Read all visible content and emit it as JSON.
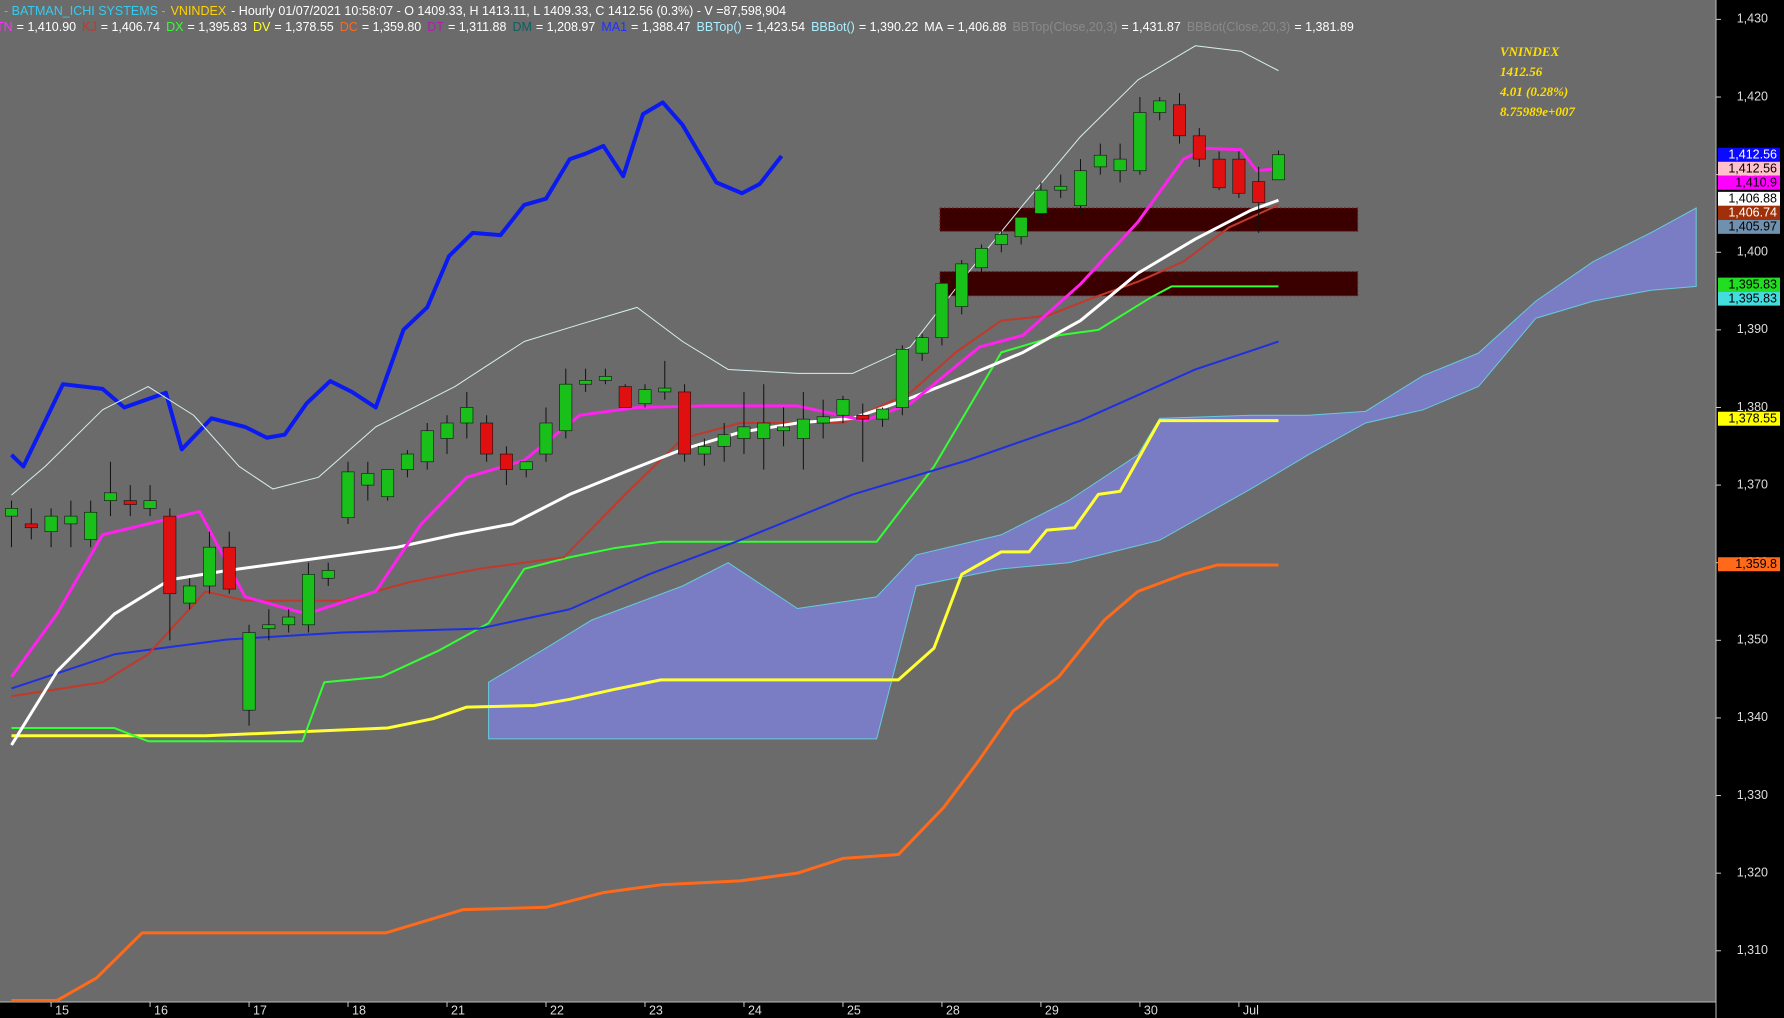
{
  "chart_data": {
    "type": "candlestick",
    "title_parts": [
      {
        "text": "- BATMAN_ICHI SYSTEMS -",
        "color": "#33ccee"
      },
      {
        "text": "VNINDEX",
        "color": "#ffd200"
      },
      {
        "text": "- Hourly 01/07/2021 10:58:07 - O 1409.33, H 1413.11, L 1409.33, C 1412.56 (0.3%) - V =87,598,904",
        "color": "#ffffff"
      }
    ],
    "indicator_legend": [
      {
        "name": "TN",
        "text": "= 1,410.90",
        "color": "#ff33ff"
      },
      {
        "name": "KJ",
        "text": "= 1,406.74",
        "color": "#c0392b"
      },
      {
        "name": "DX",
        "text": "= 1,395.83",
        "color": "#33ff33"
      },
      {
        "name": "DV",
        "text": "= 1,378.55",
        "color": "#ffff33"
      },
      {
        "name": "DC",
        "text": "= 1,359.80",
        "color": "#ff6a1a"
      },
      {
        "name": "DT",
        "text": "= 1,311.88",
        "color": "#aa22aa"
      },
      {
        "name": "DM",
        "text": "= 1,208.97",
        "color": "#0f5f5f"
      },
      {
        "name": "MA1",
        "text": "= 1,388.47",
        "color": "#2030ff"
      },
      {
        "name": "BBTop()",
        "text": "= 1,423.54",
        "color": "#aaeeff"
      },
      {
        "name": "BBBot()",
        "text": "= 1,390.22",
        "color": "#aaeeff"
      },
      {
        "name": "MA",
        "text": "= 1,406.88",
        "color": "#ffffff"
      },
      {
        "name": "BBTop(Close,20,3)",
        "text": "= 1,431.87",
        "color": "#8a8a8a"
      },
      {
        "name": "BBBot(Close,20,3)",
        "text": "= 1,381.89",
        "color": "#8a8a8a"
      }
    ],
    "annotation": {
      "lines": [
        "VNINDEX",
        "1412.56",
        "4.01 (0.28%)",
        "8.75989e+007"
      ],
      "color": "#ffe000"
    },
    "xlim": [
      -0.58,
      86.1
    ],
    "ylim": [
      1303.4,
      1432.5
    ],
    "xticks": [
      {
        "value": 2,
        "label": "15"
      },
      {
        "value": 7,
        "label": "16"
      },
      {
        "value": 12,
        "label": "17"
      },
      {
        "value": 17,
        "label": "18"
      },
      {
        "value": 22,
        "label": "21"
      },
      {
        "value": 27,
        "label": "22"
      },
      {
        "value": 32,
        "label": "23"
      },
      {
        "value": 37,
        "label": "24"
      },
      {
        "value": 42,
        "label": "25"
      },
      {
        "value": 47,
        "label": "28"
      },
      {
        "value": 52,
        "label": "29"
      },
      {
        "value": 57,
        "label": "30"
      },
      {
        "value": 62,
        "label": "Jul"
      }
    ],
    "yticks": [
      {
        "value": 1310,
        "label": "1,310"
      },
      {
        "value": 1320,
        "label": "1,320"
      },
      {
        "value": 1330,
        "label": "1,330"
      },
      {
        "value": 1340,
        "label": "1,340"
      },
      {
        "value": 1350,
        "label": "1,350"
      },
      {
        "value": 1360,
        "label": "1,360"
      },
      {
        "value": 1370,
        "label": "1,370"
      },
      {
        "value": 1380,
        "label": "1,380"
      },
      {
        "value": 1390,
        "label": "1,390"
      },
      {
        "value": 1400,
        "label": "1,400"
      },
      {
        "value": 1410,
        "label": "1,410"
      },
      {
        "value": 1420,
        "label": "1,420"
      },
      {
        "value": 1430,
        "label": "1,430"
      }
    ],
    "up_color": "#19c019",
    "down_color": "#e01010",
    "candles": {
      "open": [
        1366,
        1365,
        1364,
        1365,
        1363,
        1368,
        1368,
        1367,
        1366,
        1354.8,
        1357,
        1362,
        1341,
        1351.5,
        1352,
        1352,
        1358,
        1365.8,
        1370,
        1368.5,
        1372,
        1373,
        1376,
        1378,
        1378,
        1374,
        1372,
        1374,
        1377,
        1383,
        1383.5,
        1382.7,
        1380.5,
        1382,
        1382,
        1374,
        1375,
        1376,
        1376,
        1377,
        1376,
        1378,
        1379,
        1379,
        1378.5,
        1380,
        1387,
        1389,
        1393,
        1398,
        1401,
        1402,
        1405,
        1408,
        1406,
        1411,
        1410.5,
        1410.5,
        1418,
        1419,
        1415,
        1412,
        1412,
        1409.1,
        1409.33
      ],
      "high": [
        1368,
        1367,
        1367,
        1368,
        1368,
        1373,
        1370,
        1370,
        1367,
        1358,
        1364,
        1364,
        1352,
        1354,
        1354,
        1360,
        1360,
        1373,
        1373,
        1372,
        1374.5,
        1378,
        1379,
        1382,
        1379,
        1375,
        1373,
        1380,
        1385,
        1385,
        1385,
        1383,
        1383,
        1386,
        1383,
        1376,
        1378,
        1382,
        1383,
        1380,
        1382,
        1381,
        1381.5,
        1380.5,
        1380,
        1388,
        1389.5,
        1397,
        1399,
        1401,
        1403,
        1405,
        1409,
        1410,
        1412,
        1414,
        1414,
        1420,
        1420,
        1420.5,
        1416,
        1413,
        1413,
        1411,
        1413.11
      ],
      "low": [
        1362,
        1363,
        1362,
        1362,
        1362,
        1366,
        1366,
        1366,
        1350,
        1354,
        1356,
        1356,
        1339,
        1350,
        1351,
        1351,
        1357,
        1365,
        1368,
        1368,
        1371,
        1372,
        1374,
        1376,
        1373,
        1370,
        1371,
        1373,
        1376,
        1382,
        1383,
        1380,
        1380,
        1381,
        1373,
        1372.5,
        1373,
        1374,
        1372,
        1375,
        1372,
        1376,
        1378,
        1373,
        1377.5,
        1379,
        1386,
        1388,
        1392,
        1397,
        1400,
        1401,
        1404,
        1407,
        1405,
        1410,
        1409,
        1410,
        1417,
        1414,
        1411,
        1408,
        1407,
        1402.5,
        1409.33
      ],
      "close": [
        1367,
        1364.5,
        1366,
        1366,
        1366.5,
        1369,
        1367.5,
        1368,
        1356,
        1357,
        1362,
        1356.6,
        1351,
        1352,
        1353,
        1358.5,
        1359,
        1371.7,
        1371.5,
        1372,
        1374,
        1377,
        1378,
        1380,
        1374,
        1372,
        1373,
        1378,
        1383,
        1383.5,
        1384,
        1380,
        1382.3,
        1382.5,
        1374,
        1375,
        1376.5,
        1377.5,
        1378,
        1377.5,
        1378.5,
        1378.8,
        1381,
        1378.5,
        1379.8,
        1387.5,
        1389,
        1396,
        1398.5,
        1400.5,
        1402.3,
        1404.5,
        1408,
        1408.5,
        1410.5,
        1412.5,
        1412,
        1418,
        1419.5,
        1415,
        1412,
        1408.3,
        1407.6,
        1406.4,
        1412.56
      ]
    },
    "cloud": {
      "color": "#7a7cc4",
      "x": [
        24.1,
        27,
        29.3,
        31.6,
        33.9,
        36.2,
        39.7,
        43.7,
        45.7,
        50,
        53.4,
        56.9,
        58,
        62.6,
        65.5,
        68.4,
        71.3,
        74.1,
        77,
        79.9,
        82.8,
        85.1
      ],
      "upper": [
        1344.6,
        1349,
        1352.6,
        1354.8,
        1357,
        1360,
        1354.1,
        1355.6,
        1361,
        1363.6,
        1368,
        1373.9,
        1378.6,
        1379,
        1379,
        1379.5,
        1384.1,
        1387,
        1393.7,
        1398.8,
        1402.5,
        1405.7
      ],
      "lower": [
        1337.3,
        1337.3,
        1337.3,
        1337.3,
        1337.3,
        1337.3,
        1337.3,
        1337.3,
        1357,
        1359.2,
        1360,
        1362.2,
        1362.9,
        1369.5,
        1373.9,
        1378,
        1379.7,
        1382.7,
        1391.5,
        1393.7,
        1395.1,
        1395.6
      ]
    },
    "zones": [
      {
        "color": "#3a0000",
        "x": [
          46.9,
          68
        ],
        "y": [
          1402.7,
          1405.7
        ]
      },
      {
        "color": "#3a0000",
        "x": [
          46.9,
          68
        ],
        "y": [
          1394.4,
          1397.5
        ]
      }
    ],
    "series": [
      {
        "color": "#ff6a1a",
        "width": 3,
        "x": [
          0,
          2.3,
          4.3,
          6.6,
          18.9,
          22.8,
          27,
          29.9,
          32.8,
          36.8,
          39.7,
          42,
          44.8,
          47.1,
          48.8,
          50.6,
          52.9,
          55.2,
          56.9,
          59.2,
          60.9,
          64
        ],
        "values": [
          1303.6,
          1303.6,
          1306.5,
          1312.3,
          1312.3,
          1315.3,
          1315.6,
          1317.5,
          1318.5,
          1319,
          1320,
          1321.9,
          1322.4,
          1328.5,
          1334.3,
          1340.9,
          1345.3,
          1352.6,
          1356.3,
          1358.5,
          1359.7,
          1359.7
        ]
      },
      {
        "color": "#ffff33",
        "width": 3,
        "x": [
          0,
          9.8,
          19,
          21.3,
          23,
          26.4,
          28.2,
          30.5,
          32.8,
          44.8,
          46.6,
          48,
          50,
          51.4,
          52.3,
          53.7,
          54.9,
          56,
          58,
          64
        ],
        "values": [
          1337.7,
          1337.7,
          1338.7,
          1339.9,
          1341.4,
          1341.6,
          1342.4,
          1343.7,
          1344.9,
          1344.9,
          1349,
          1358.5,
          1361.4,
          1361.4,
          1364.2,
          1364.5,
          1368.8,
          1369.2,
          1378.3,
          1378.3
        ]
      },
      {
        "color": "#33ff33",
        "width": 2,
        "x": [
          0,
          5.2,
          6.9,
          14.7,
          15.8,
          18.7,
          21.6,
          24.1,
          25.9,
          28.2,
          30.5,
          32.8,
          43.7,
          46.6,
          50,
          52.9,
          54.9,
          57.5,
          58.6,
          64
        ],
        "values": [
          1338.7,
          1338.7,
          1337,
          1337,
          1344.6,
          1345.3,
          1348.7,
          1352.2,
          1359.2,
          1360.7,
          1361.9,
          1362.7,
          1362.7,
          1372.4,
          1387.1,
          1389.3,
          1390,
          1394.1,
          1395.6,
          1395.6
        ]
      },
      {
        "color": "#1f30e0",
        "width": 2,
        "x": [
          0,
          5.2,
          10.9,
          16.7,
          23.6,
          28.2,
          32.2,
          36.8,
          42.5,
          48.3,
          54,
          59.8,
          64
        ],
        "values": [
          1343.8,
          1348.2,
          1350.1,
          1351,
          1351.5,
          1354,
          1358.5,
          1362.9,
          1368.8,
          1373.2,
          1378.3,
          1384.9,
          1388.5
        ]
      },
      {
        "color": "#c0392b",
        "width": 2,
        "x": [
          0,
          4.6,
          6.9,
          9.8,
          11.8,
          16.7,
          20.1,
          23.6,
          27.9,
          31,
          33.9,
          36.8,
          42,
          45.4,
          47.7,
          50,
          52.3,
          54.6,
          56.9,
          59.2,
          61.5,
          64
        ],
        "values": [
          1342.8,
          1344.6,
          1348.2,
          1356.3,
          1355.1,
          1355.1,
          1357.5,
          1359.2,
          1360.7,
          1368.8,
          1376,
          1378,
          1378,
          1381.9,
          1387.1,
          1391.2,
          1391.8,
          1394.1,
          1396.2,
          1398.8,
          1403.2,
          1406.1
        ]
      },
      {
        "color": "#ffffff",
        "width": 3,
        "x": [
          0,
          2.3,
          5.2,
          8.0,
          10.9,
          13.8,
          16.7,
          19.5,
          22.4,
          25.3,
          28.2,
          31,
          33.9,
          36.8,
          39.7,
          42.5,
          45.4,
          48.3,
          51.1,
          54,
          56.9,
          59.8,
          62.6,
          64
        ],
        "values": [
          1336.5,
          1346,
          1353.4,
          1357.8,
          1359,
          1360,
          1361,
          1362,
          1363.6,
          1365,
          1368.8,
          1371.7,
          1374.6,
          1376.8,
          1378,
          1378.6,
          1381.2,
          1384.1,
          1387.1,
          1391.2,
          1397.3,
          1401.7,
          1405.4,
          1406.7
        ]
      },
      {
        "color": "#ff22ee",
        "width": 3,
        "x": [
          0,
          2.3,
          4.6,
          6.9,
          9.5,
          11.8,
          14.9,
          18.4,
          20.7,
          23,
          25.9,
          28.7,
          31.6,
          35.1,
          39.7,
          43.1,
          45.4,
          48.9,
          51.1,
          54,
          56.9,
          59.2,
          60.3,
          62.1,
          62.9,
          64
        ],
        "values": [
          1345.3,
          1353.4,
          1363.6,
          1365,
          1366.6,
          1355.6,
          1353.4,
          1356.3,
          1365,
          1371,
          1373.2,
          1379,
          1380,
          1380.2,
          1380.2,
          1378.3,
          1380.5,
          1387.8,
          1389.3,
          1395.9,
          1403.9,
          1412,
          1413.4,
          1413.2,
          1410.5,
          1410.8
        ]
      },
      {
        "color": "#0a1af0",
        "width": 4,
        "x": [
          0,
          0.6,
          2.6,
          4.6,
          5.7,
          7.8,
          8.6,
          10.1,
          11.8,
          12.9,
          13.8,
          14.9,
          16.1,
          17.2,
          18.4,
          19.8,
          21,
          22.1,
          23.3,
          24.7,
          25.9,
          27,
          28.2,
          29,
          29.9,
          30.9,
          31.9,
          32.9,
          33.9,
          35.6,
          36.9,
          37.8,
          38.9
        ],
        "values": [
          1373.9,
          1372.4,
          1383,
          1382.4,
          1380,
          1381.9,
          1374.6,
          1378.6,
          1377.5,
          1376.1,
          1376.5,
          1380.5,
          1383.4,
          1382,
          1380,
          1390,
          1392.9,
          1399.5,
          1402.5,
          1402.2,
          1406.1,
          1406.9,
          1412,
          1412.7,
          1413.7,
          1409.8,
          1417.8,
          1419.3,
          1416.4,
          1409,
          1407.6,
          1408.8,
          1412.4
        ]
      },
      {
        "color": "#d8f0f0",
        "width": 1,
        "x": [
          0,
          1.7,
          4.6,
          6.9,
          9.2,
          11.5,
          13.2,
          15.5,
          18.4,
          22.4,
          25.9,
          28.7,
          31.6,
          33.9,
          36.2,
          39.7,
          42.5,
          45.4,
          48.3,
          51.1,
          54,
          56.9,
          59.8,
          62.1,
          64
        ],
        "values": [
          1368.7,
          1372.4,
          1379.7,
          1382.7,
          1379,
          1372.4,
          1369.5,
          1371,
          1377.5,
          1382.7,
          1388.5,
          1390.7,
          1392.9,
          1388.5,
          1384.9,
          1384.4,
          1384.4,
          1387.8,
          1397.3,
          1406.1,
          1414.9,
          1422.2,
          1426.6,
          1425.9,
          1423.4
        ]
      }
    ],
    "price_tags": [
      {
        "value": 1412.56,
        "label": "1,412.56",
        "color": "#0a0aff",
        "text_color": "#ffffff"
      },
      {
        "value": 1412.56,
        "label": "1,412.56",
        "color": "#ffc0cb",
        "text_color": "#000000"
      },
      {
        "value": 1410.9,
        "label": "1,410.9",
        "color": "#ff00ff",
        "text_color": "#000000"
      },
      {
        "value": 1406.88,
        "label": "1,406.88",
        "color": "#ffffff",
        "text_color": "#000000"
      },
      {
        "value": 1406.74,
        "label": "1,406.74",
        "color": "#a0300a",
        "text_color": "#ffffff"
      },
      {
        "value": 1405.97,
        "label": "1,405.97",
        "color": "#7090b0",
        "text_color": "#000000"
      },
      {
        "value": 1395.83,
        "label": "1,395.83",
        "color": "#22dd22",
        "text_color": "#000000"
      },
      {
        "value": 1395.83,
        "label": "1,395.83",
        "color": "#44dddd",
        "text_color": "#000000"
      },
      {
        "value": 1378.55,
        "label": "1,378.55",
        "color": "#ffff00",
        "text_color": "#000000"
      },
      {
        "value": 1359.8,
        "label": "1,359.8",
        "color": "#ff6a1a",
        "text_color": "#000000"
      }
    ]
  }
}
